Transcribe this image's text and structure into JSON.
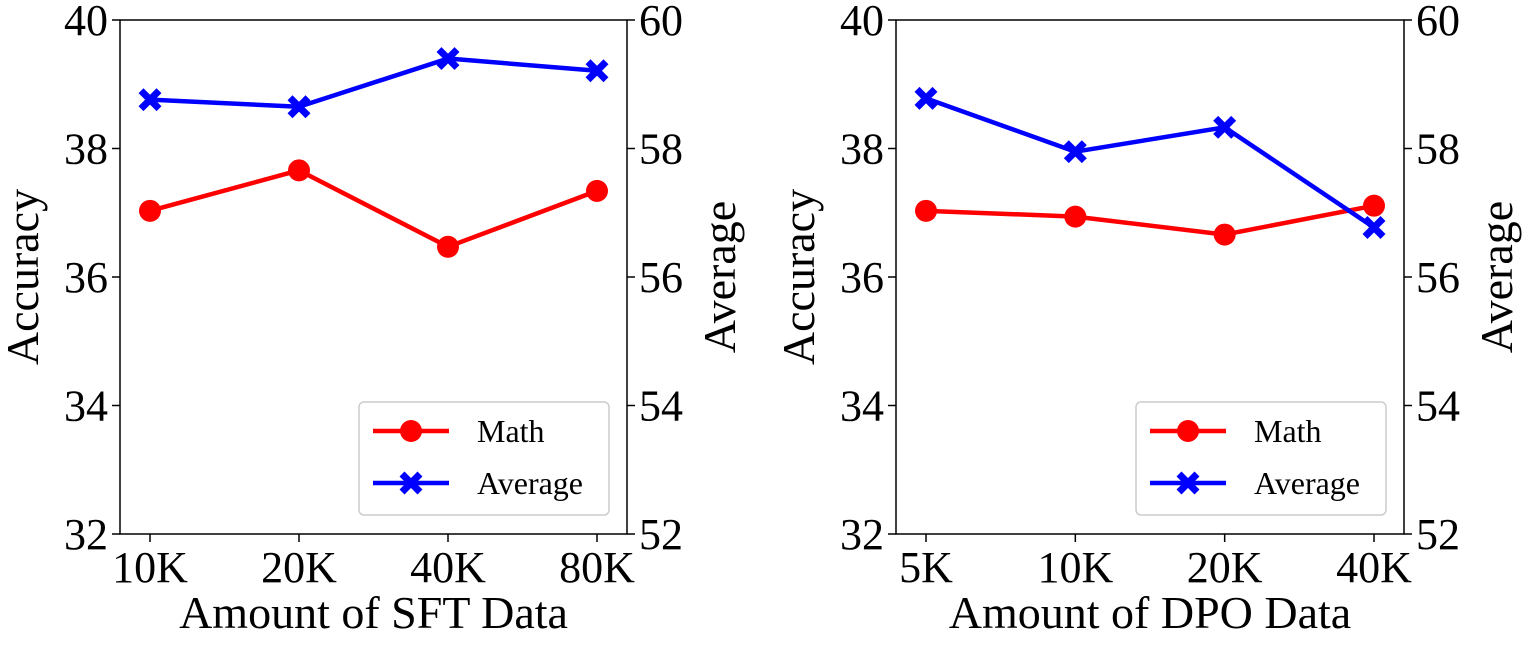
{
  "colors": {
    "math": "#ff0000",
    "average": "#0000ff",
    "axes": "#000000",
    "legend_border": "#cccccc"
  },
  "legend": {
    "math_label": "Math",
    "average_label": "Average",
    "placement": "lower-right"
  },
  "chart_data": [
    {
      "type": "line",
      "title": "",
      "xlabel": "Amount of SFT Data",
      "ylabel": "Accuracy",
      "y2label": "Average",
      "categories": [
        "10K",
        "20K",
        "40K",
        "80K"
      ],
      "ylim": [
        32,
        40
      ],
      "y2lim": [
        52,
        60
      ],
      "yticks": [
        "32",
        "34",
        "36",
        "38",
        "40"
      ],
      "y2ticks": [
        "52",
        "54",
        "56",
        "58",
        "60"
      ],
      "grid": false,
      "series": [
        {
          "name": "Math",
          "axis": "left",
          "marker": "circle",
          "color": "#ff0000",
          "values": [
            37.03,
            37.66,
            36.47,
            37.34
          ]
        },
        {
          "name": "Average",
          "axis": "right",
          "marker": "x",
          "color": "#0000ff",
          "values": [
            58.76,
            58.65,
            59.4,
            59.21
          ]
        }
      ]
    },
    {
      "type": "line",
      "title": "",
      "xlabel": "Amount of DPO Data",
      "ylabel": "Accuracy",
      "y2label": "Average",
      "categories": [
        "5K",
        "10K",
        "20K",
        "40K"
      ],
      "ylim": [
        32,
        40
      ],
      "y2lim": [
        52,
        60
      ],
      "yticks": [
        "32",
        "34",
        "36",
        "38",
        "40"
      ],
      "y2ticks": [
        "52",
        "54",
        "56",
        "58",
        "60"
      ],
      "grid": false,
      "series": [
        {
          "name": "Math",
          "axis": "left",
          "marker": "circle",
          "color": "#ff0000",
          "values": [
            37.03,
            36.94,
            36.66,
            37.11
          ]
        },
        {
          "name": "Average",
          "axis": "right",
          "marker": "x",
          "color": "#0000ff",
          "values": [
            58.78,
            57.95,
            58.33,
            56.77
          ]
        }
      ]
    }
  ]
}
